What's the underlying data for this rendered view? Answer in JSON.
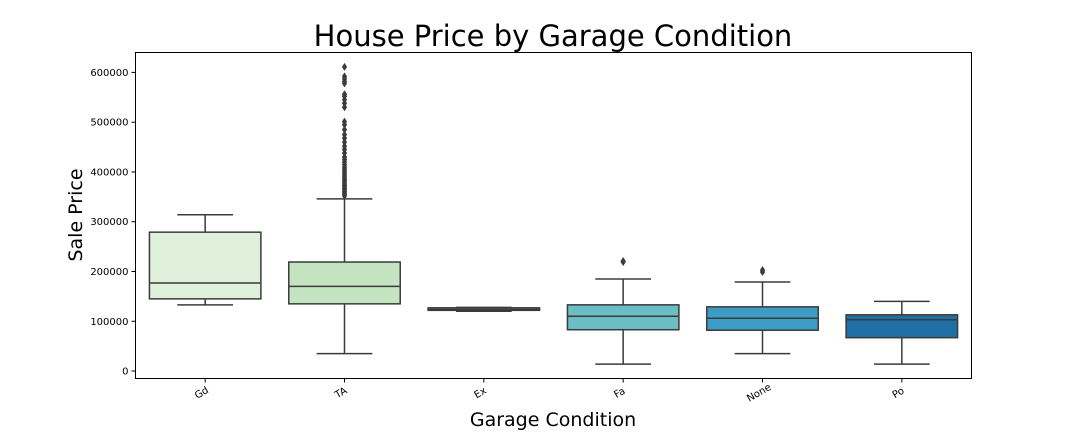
{
  "chart_data": {
    "type": "box",
    "title": "House Price by Garage Condition",
    "xlabel": "Garage Condition",
    "ylabel": "Sale Price",
    "ylim": [
      -15000,
      640000
    ],
    "yticks": [
      0,
      100000,
      200000,
      300000,
      400000,
      500000,
      600000
    ],
    "ytick_labels": [
      "0",
      "100000",
      "200000",
      "300000",
      "400000",
      "500000",
      "600000"
    ],
    "grid": false,
    "categories": [
      "Gd",
      "TA",
      "Ex",
      "Fa",
      "None",
      "Po"
    ],
    "boxes": [
      {
        "category": "Gd",
        "whisker_low": 133000,
        "q1": 145000,
        "median": 177000,
        "q3": 279000,
        "whisker_high": 314000,
        "outliers": []
      },
      {
        "category": "TA",
        "whisker_low": 35000,
        "q1": 135000,
        "median": 170000,
        "q3": 219000,
        "whisker_high": 346000,
        "outliers": [
          352000,
          355000,
          358000,
          361000,
          364000,
          367000,
          370000,
          373000,
          376000,
          380000,
          383000,
          386000,
          390000,
          394000,
          398000,
          402000,
          406000,
          410000,
          415000,
          420000,
          425000,
          430000,
          438000,
          445000,
          452000,
          460000,
          468000,
          475000,
          485000,
          495000,
          501000,
          530000,
          538000,
          545000,
          552000,
          556000,
          578000,
          582000,
          587000,
          592000,
          611000
        ]
      },
      {
        "category": "Ex",
        "whisker_low": 120000,
        "q1": 122000,
        "median": 124000,
        "q3": 127000,
        "whisker_high": 128000,
        "outliers": []
      },
      {
        "category": "Fa",
        "whisker_low": 14000,
        "q1": 83000,
        "median": 110000,
        "q3": 133000,
        "whisker_high": 185000,
        "outliers": [
          219000,
          221000
        ]
      },
      {
        "category": "None",
        "whisker_low": 35000,
        "q1": 82000,
        "median": 106000,
        "q3": 129000,
        "whisker_high": 179000,
        "outliers": [
          199000,
          203000
        ]
      },
      {
        "category": "Po",
        "whisker_low": 14000,
        "q1": 67000,
        "median": 103000,
        "q3": 113000,
        "whisker_high": 140000,
        "outliers": []
      }
    ],
    "colors": [
      "#e0f1db",
      "#c4e4c1",
      "#97d4bb",
      "#6bbec4",
      "#3d9cc5",
      "#1f6fa6"
    ],
    "line_color": "#3b3b3b"
  }
}
